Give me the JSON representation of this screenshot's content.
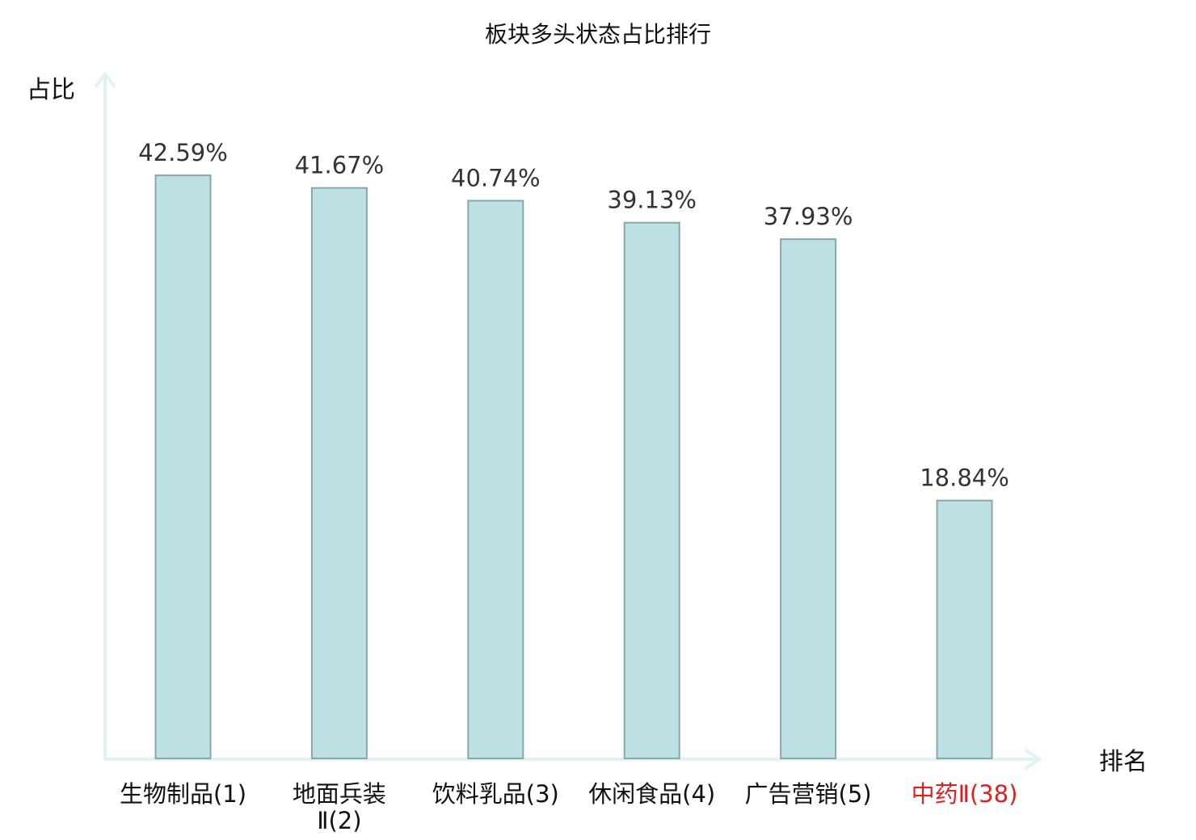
{
  "chart_data": {
    "type": "bar",
    "title": "板块多头状态占比排行",
    "ylabel": "占比",
    "xlabel": "排名",
    "ylim": [
      0,
      50
    ],
    "grid": false,
    "categories": [
      {
        "label": [
          "生物制品(1)"
        ],
        "value": 42.59,
        "value_label": "42.59%",
        "highlight": false
      },
      {
        "label": [
          "地面兵装",
          "Ⅱ(2)"
        ],
        "value": 41.67,
        "value_label": "41.67%",
        "highlight": false
      },
      {
        "label": [
          "饮料乳品(3)"
        ],
        "value": 40.74,
        "value_label": "40.74%",
        "highlight": false
      },
      {
        "label": [
          "休闲食品(4)"
        ],
        "value": 39.13,
        "value_label": "39.13%",
        "highlight": false
      },
      {
        "label": [
          "广告营销(5)"
        ],
        "value": 37.93,
        "value_label": "37.93%",
        "highlight": false
      },
      {
        "label": [
          "中药Ⅱ(38)"
        ],
        "value": 18.84,
        "value_label": "18.84%",
        "highlight": true
      }
    ],
    "colors": {
      "bar_fill": "#bde0e3",
      "bar_stroke": "#8aa6a9",
      "axis": "#e0f3f0",
      "tick_text": "#111111",
      "highlight_text": "#e02020"
    }
  }
}
